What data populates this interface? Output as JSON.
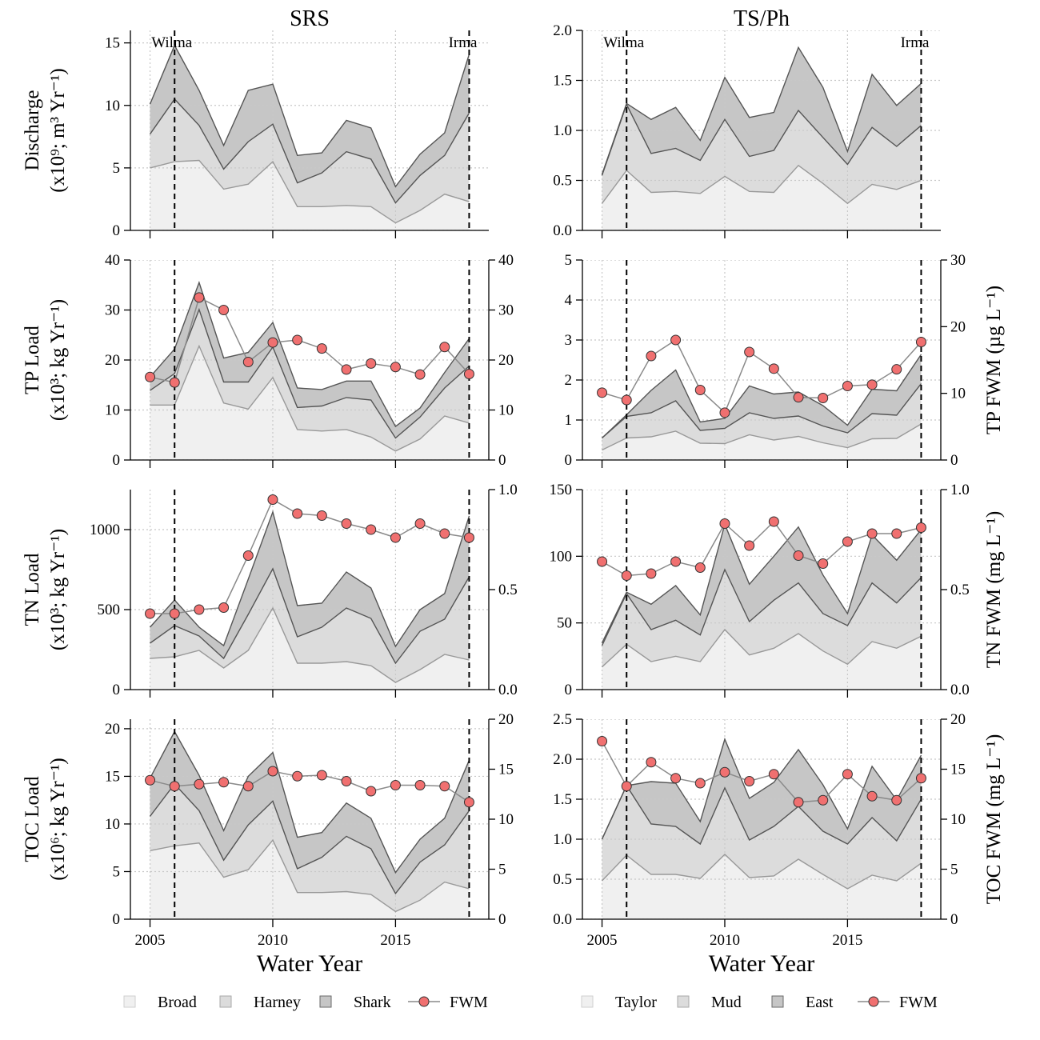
{
  "colors": {
    "area1": "#f0f0f0",
    "area2": "#dcdcdc",
    "area3": "#c6c6c6",
    "line1": "#999999",
    "line2": "#555555",
    "line3": "#555555",
    "fwm_fill": "#f07070",
    "fwm_line": "#8a8a8a",
    "grid": "#c8c8c8"
  },
  "xlabel": "Water Year",
  "events": [
    {
      "label": "Wilma",
      "year": 2006
    },
    {
      "label": "Irma",
      "year": 2018
    }
  ],
  "legends": [
    {
      "items": [
        "Broad",
        "Harney",
        "Shark",
        "FWM"
      ]
    },
    {
      "items": [
        "Taylor",
        "Mud",
        "East",
        "FWM"
      ]
    }
  ],
  "chart_data": [
    {
      "type": "area",
      "column": "SRS",
      "row": 0,
      "title": "SRS",
      "ylabel": [
        "Discharge",
        "(x10⁹; m³ Yr⁻¹)"
      ],
      "x": [
        2005,
        2006,
        2007,
        2008,
        2009,
        2010,
        2011,
        2012,
        2013,
        2014,
        2015,
        2016,
        2017,
        2018
      ],
      "xlim": [
        2004.2,
        2018.8
      ],
      "ylim": [
        0,
        16
      ],
      "yticks": [
        0,
        5,
        10,
        15
      ],
      "ytick_labels": [
        "0",
        "5",
        "10",
        "15"
      ],
      "cumulative": [
        [
          5.0,
          5.5,
          5.6,
          3.3,
          3.7,
          5.5,
          1.9,
          1.9,
          2.0,
          1.9,
          0.6,
          1.6,
          2.9,
          2.3
        ],
        [
          7.7,
          10.5,
          8.4,
          4.9,
          7.1,
          8.5,
          3.8,
          4.6,
          6.3,
          5.7,
          2.2,
          4.4,
          6.0,
          9.4
        ],
        [
          10.1,
          14.8,
          11.2,
          6.8,
          11.2,
          11.7,
          6.0,
          6.2,
          8.8,
          8.2,
          3.5,
          6.1,
          7.8,
          14.1
        ]
      ]
    },
    {
      "type": "area",
      "column": "TS/Ph",
      "row": 0,
      "title": "TS/Ph",
      "ylabel": [],
      "x": [
        2005,
        2006,
        2007,
        2008,
        2009,
        2010,
        2011,
        2012,
        2013,
        2014,
        2015,
        2016,
        2017,
        2018
      ],
      "xlim": [
        2004.2,
        2018.8
      ],
      "ylim": [
        0,
        2.0
      ],
      "yticks": [
        0,
        0.5,
        1.0,
        1.5,
        2.0
      ],
      "ytick_labels": [
        "0.0",
        "0.5",
        "1.0",
        "1.5",
        "2.0"
      ],
      "cumulative": [
        [
          0.27,
          0.6,
          0.38,
          0.39,
          0.37,
          0.54,
          0.39,
          0.38,
          0.65,
          0.47,
          0.27,
          0.46,
          0.41,
          0.5
        ],
        [
          0.55,
          1.26,
          0.77,
          0.82,
          0.7,
          1.11,
          0.74,
          0.8,
          1.2,
          0.93,
          0.66,
          1.03,
          0.84,
          1.05
        ],
        [
          0.56,
          1.27,
          1.11,
          1.23,
          0.9,
          1.53,
          1.13,
          1.18,
          1.83,
          1.43,
          0.79,
          1.56,
          1.25,
          1.47
        ]
      ]
    },
    {
      "type": "area",
      "column": "SRS",
      "row": 1,
      "ylabel": [
        "TP Load",
        "(x10³; kg Yr⁻¹)"
      ],
      "x": [
        2005,
        2006,
        2007,
        2008,
        2009,
        2010,
        2011,
        2012,
        2013,
        2014,
        2015,
        2016,
        2017,
        2018
      ],
      "xlim": [
        2004.2,
        2018.8
      ],
      "ylim": [
        0,
        40
      ],
      "yticks": [
        0,
        10,
        20,
        30,
        40
      ],
      "ytick_labels": [
        "0",
        "10",
        "20",
        "30",
        "40"
      ],
      "cumulative": [
        [
          11.0,
          11.0,
          22.8,
          11.4,
          10.2,
          16.5,
          6.1,
          5.8,
          6.1,
          4.6,
          1.8,
          4.2,
          8.8,
          7.4
        ],
        [
          13.9,
          17.3,
          30.1,
          15.6,
          15.6,
          22.6,
          10.5,
          10.8,
          12.5,
          12.0,
          4.4,
          8.6,
          14.4,
          18.8
        ],
        [
          16.6,
          22.2,
          35.5,
          20.4,
          21.5,
          27.5,
          14.4,
          14.1,
          15.8,
          15.8,
          6.7,
          10.4,
          17.5,
          24.3
        ]
      ],
      "fwm": {
        "name": "FWM",
        "ylim": [
          0,
          40
        ],
        "yticks": [
          0,
          10,
          20,
          30,
          40
        ],
        "ytick_labels": [
          "0",
          "10",
          "20",
          "30",
          "40"
        ],
        "values": [
          16.6,
          15.5,
          32.5,
          30.0,
          19.6,
          23.5,
          24.0,
          22.3,
          18.1,
          19.3,
          18.6,
          17.1,
          22.6,
          17.2
        ]
      }
    },
    {
      "type": "area",
      "column": "TS/Ph",
      "row": 1,
      "ylabel": [],
      "right_label": "TP FWM (µg L⁻¹)",
      "x": [
        2005,
        2006,
        2007,
        2008,
        2009,
        2010,
        2011,
        2012,
        2013,
        2014,
        2015,
        2016,
        2017,
        2018
      ],
      "xlim": [
        2004.2,
        2018.8
      ],
      "ylim": [
        0,
        5
      ],
      "yticks": [
        0,
        1,
        2,
        3,
        4,
        5
      ],
      "ytick_labels": [
        "0",
        "1",
        "2",
        "3",
        "4",
        "5"
      ],
      "cumulative": [
        [
          0.25,
          0.55,
          0.58,
          0.72,
          0.42,
          0.41,
          0.63,
          0.5,
          0.59,
          0.43,
          0.31,
          0.53,
          0.54,
          0.9
        ],
        [
          0.55,
          1.09,
          1.18,
          1.48,
          0.74,
          0.79,
          1.18,
          1.04,
          1.1,
          0.85,
          0.68,
          1.16,
          1.12,
          1.91
        ],
        [
          0.55,
          1.13,
          1.74,
          2.25,
          0.95,
          1.04,
          1.85,
          1.65,
          1.7,
          1.36,
          0.87,
          1.77,
          1.73,
          2.64
        ]
      ],
      "fwm": {
        "name": "FWM",
        "ylim": [
          0,
          30
        ],
        "yticks": [
          0,
          10,
          20,
          30
        ],
        "ytick_labels": [
          "0",
          "10",
          "20",
          "30"
        ],
        "values": [
          10.1,
          9.0,
          15.6,
          18.0,
          10.5,
          7.1,
          16.2,
          13.7,
          9.4,
          9.3,
          11.1,
          11.3,
          13.6,
          17.7
        ]
      }
    },
    {
      "type": "area",
      "column": "SRS",
      "row": 2,
      "ylabel": [
        "TN Load",
        "(x10³; kg Yr⁻¹)"
      ],
      "x": [
        2005,
        2006,
        2007,
        2008,
        2009,
        2010,
        2011,
        2012,
        2013,
        2014,
        2015,
        2016,
        2017,
        2018
      ],
      "xlim": [
        2004.2,
        2018.8
      ],
      "ylim": [
        0,
        1250
      ],
      "yticks": [
        0,
        500,
        1000
      ],
      "ytick_labels": [
        "0",
        "500",
        "1000"
      ],
      "cumulative": [
        [
          195,
          205,
          245,
          135,
          245,
          510,
          165,
          165,
          175,
          150,
          45,
          125,
          220,
          185
        ],
        [
          290,
          400,
          335,
          195,
          470,
          755,
          330,
          390,
          510,
          445,
          165,
          365,
          440,
          705
        ],
        [
          390,
          560,
          390,
          275,
          690,
          1110,
          525,
          540,
          735,
          635,
          270,
          500,
          600,
          1085
        ]
      ],
      "fwm": {
        "name": "FWM",
        "ylim": [
          0,
          1.0
        ],
        "yticks": [
          0,
          0.5,
          1.0
        ],
        "ytick_labels": [
          "0.0",
          "0.5",
          "1.0"
        ],
        "values": [
          0.38,
          0.38,
          0.4,
          0.41,
          0.67,
          0.95,
          0.88,
          0.87,
          0.83,
          0.8,
          0.76,
          0.83,
          0.78,
          0.76
        ]
      }
    },
    {
      "type": "area",
      "column": "TS/Ph",
      "row": 2,
      "ylabel": [],
      "right_label": "TN FWM (mg L⁻¹)",
      "x": [
        2005,
        2006,
        2007,
        2008,
        2009,
        2010,
        2011,
        2012,
        2013,
        2014,
        2015,
        2016,
        2017,
        2018
      ],
      "xlim": [
        2004.2,
        2018.8
      ],
      "ylim": [
        0,
        150
      ],
      "yticks": [
        0,
        50,
        100,
        150
      ],
      "ytick_labels": [
        "0",
        "50",
        "100",
        "150"
      ],
      "cumulative": [
        [
          17,
          34,
          21,
          25,
          21,
          45,
          26,
          31,
          42,
          29,
          19,
          36,
          31,
          40
        ],
        [
          33,
          72,
          45,
          52,
          41,
          90,
          51,
          67,
          80,
          57,
          48,
          80,
          65,
          84
        ],
        [
          35,
          73,
          64,
          78,
          56,
          124,
          79,
          100,
          122,
          86,
          57,
          116,
          97,
          120
        ]
      ],
      "fwm": {
        "name": "FWM",
        "ylim": [
          0,
          1.0
        ],
        "yticks": [
          0,
          0.5,
          1.0
        ],
        "ytick_labels": [
          "0.0",
          "0.5",
          "1.0"
        ],
        "values": [
          0.64,
          0.57,
          0.58,
          0.64,
          0.61,
          0.83,
          0.72,
          0.84,
          0.67,
          0.63,
          0.74,
          0.78,
          0.78,
          0.81
        ]
      }
    },
    {
      "type": "area",
      "column": "SRS",
      "row": 3,
      "ylabel": [
        "TOC Load",
        "(x10⁶; kg Yr⁻¹)"
      ],
      "x": [
        2005,
        2006,
        2007,
        2008,
        2009,
        2010,
        2011,
        2012,
        2013,
        2014,
        2015,
        2016,
        2017,
        2018
      ],
      "xlim": [
        2004.2,
        2018.8
      ],
      "ylim": [
        0,
        21
      ],
      "yticks": [
        0,
        5,
        10,
        15,
        20
      ],
      "ytick_labels": [
        "0",
        "5",
        "10",
        "15",
        "20"
      ],
      "cumulative": [
        [
          7.2,
          7.7,
          8.0,
          4.4,
          5.2,
          8.3,
          2.8,
          2.8,
          2.9,
          2.6,
          0.8,
          2.0,
          3.9,
          3.2
        ],
        [
          10.8,
          14.2,
          11.4,
          6.2,
          9.9,
          12.4,
          5.3,
          6.5,
          8.7,
          7.4,
          2.7,
          6.0,
          7.8,
          11.4
        ],
        [
          14.8,
          19.7,
          15.1,
          9.3,
          15.0,
          17.5,
          8.6,
          9.1,
          12.2,
          10.6,
          4.9,
          8.4,
          10.6,
          16.7
        ]
      ],
      "fwm": {
        "name": "FWM",
        "ylim": [
          0,
          20
        ],
        "yticks": [
          0,
          5,
          10,
          15,
          20
        ],
        "ytick_labels": [
          "0",
          "5",
          "10",
          "15",
          "20"
        ],
        "values": [
          13.9,
          13.3,
          13.5,
          13.7,
          13.3,
          14.8,
          14.3,
          14.4,
          13.8,
          12.8,
          13.4,
          13.4,
          13.3,
          11.7
        ]
      }
    },
    {
      "type": "area",
      "column": "TS/Ph",
      "row": 3,
      "ylabel": [],
      "right_label": "TOC FWM (mg L⁻¹)",
      "x": [
        2005,
        2006,
        2007,
        2008,
        2009,
        2010,
        2011,
        2012,
        2013,
        2014,
        2015,
        2016,
        2017,
        2018
      ],
      "xlim": [
        2004.2,
        2018.8
      ],
      "ylim": [
        0,
        2.5
      ],
      "yticks": [
        0,
        0.5,
        1.0,
        1.5,
        2.0,
        2.5
      ],
      "ytick_labels": [
        "0.0",
        "0.5",
        "1.0",
        "1.5",
        "2.0",
        "2.5"
      ],
      "cumulative": [
        [
          0.48,
          0.8,
          0.56,
          0.56,
          0.51,
          0.81,
          0.52,
          0.54,
          0.75,
          0.56,
          0.38,
          0.55,
          0.48,
          0.7
        ],
        [
          1.0,
          1.67,
          1.19,
          1.16,
          0.94,
          1.64,
          0.99,
          1.16,
          1.41,
          1.1,
          0.94,
          1.27,
          0.98,
          1.5
        ],
        [
          1.0,
          1.67,
          1.72,
          1.7,
          1.22,
          2.25,
          1.51,
          1.71,
          2.12,
          1.68,
          1.13,
          1.91,
          1.49,
          2.05
        ]
      ],
      "fwm": {
        "name": "FWM",
        "ylim": [
          0,
          20
        ],
        "yticks": [
          0,
          5,
          10,
          15,
          20
        ],
        "ytick_labels": [
          "0",
          "5",
          "10",
          "15",
          "20"
        ],
        "values": [
          17.8,
          13.3,
          15.7,
          14.1,
          13.6,
          14.7,
          13.8,
          14.5,
          11.7,
          11.9,
          14.5,
          12.3,
          11.9,
          14.1
        ]
      }
    }
  ]
}
